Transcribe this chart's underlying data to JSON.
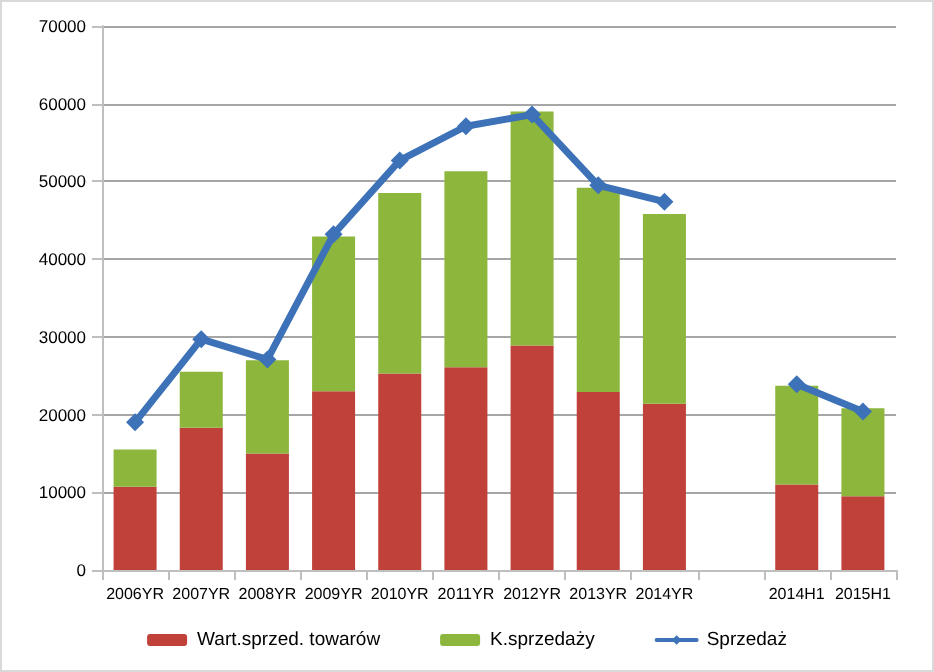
{
  "chart_data": {
    "type": "bar",
    "stacked": true,
    "categories": [
      "2006YR",
      "2007YR",
      "2008YR",
      "2009YR",
      "2010YR",
      "2011YR",
      "2012YR",
      "2013YR",
      "2014YR",
      null,
      "2014H1",
      "2015H1"
    ],
    "series": [
      {
        "name": "Wart.sprzed. towarów",
        "color": "#c0403a",
        "values": [
          10700,
          18300,
          15000,
          23000,
          25300,
          26100,
          28900,
          22900,
          21400,
          null,
          11000,
          9500
        ]
      },
      {
        "name": "K.sprzedaży",
        "color": "#8cb63c",
        "values": [
          4800,
          7200,
          12000,
          19900,
          23200,
          25200,
          30100,
          26300,
          24400,
          null,
          12700,
          11300
        ]
      },
      {
        "name": "Sprzedaż",
        "type": "line",
        "color": "#3d72b8",
        "marker": "diamond",
        "values": [
          19000,
          29700,
          27100,
          43200,
          52700,
          57100,
          58600,
          49500,
          47400,
          null,
          23900,
          20400
        ]
      }
    ],
    "ylim": [
      0,
      70000
    ],
    "yticks": [
      0,
      10000,
      20000,
      30000,
      40000,
      50000,
      60000,
      70000
    ],
    "grid": "y",
    "legend": "bottom"
  }
}
